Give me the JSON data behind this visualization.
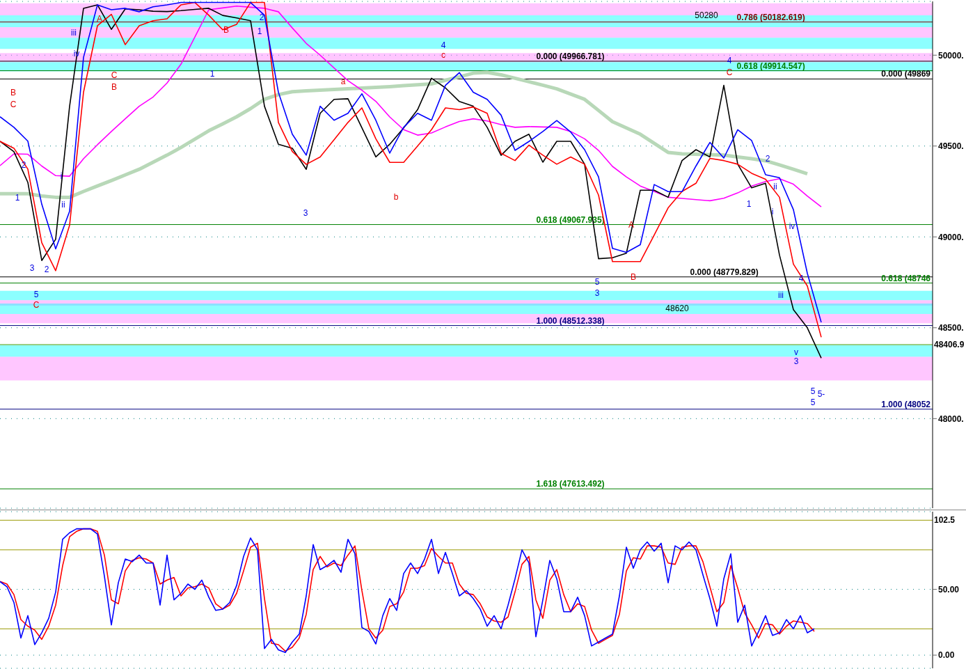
{
  "chart_data": [
    {
      "type": "line",
      "categories": [
        null,
        null,
        null,
        null,
        null,
        null,
        null,
        null,
        null,
        null,
        null,
        null,
        null,
        null,
        null,
        null,
        null,
        null,
        null,
        null,
        null,
        null,
        null,
        null,
        null,
        null,
        null,
        null,
        null,
        null,
        null,
        null,
        null,
        null,
        null,
        null,
        null,
        null,
        null,
        null,
        null,
        null,
        null,
        null,
        null,
        null,
        null,
        null,
        null,
        null,
        null,
        null,
        null,
        null,
        null,
        null,
        null,
        null,
        null,
        null,
        null,
        null,
        null,
        null,
        null,
        null,
        null,
        null
      ],
      "ylim": [
        47507,
        50296
      ],
      "yticks": [
        {
          "value": 48000,
          "label": "48000."
        },
        {
          "value": 48500,
          "label": "48500."
        },
        {
          "value": 49000,
          "label": "49000."
        },
        {
          "value": 49500,
          "label": "49500."
        },
        {
          "value": 50000,
          "label": "50000."
        }
      ],
      "tick_labels": "y",
      "grid": "y",
      "series": [
        {
          "color": "#b8d8b8",
          "values": [
            49238,
            49238,
            49238,
            49225,
            49218,
            49218,
            49250,
            49280,
            49310,
            49341,
            49372,
            49411,
            49450,
            49492,
            49538,
            49584,
            49622,
            49661,
            49706,
            49757,
            49783,
            49799,
            49804,
            49808,
            49811,
            49815,
            49819,
            49823,
            49827,
            49832,
            49837,
            49842,
            49862,
            49881,
            49901,
            49905,
            49892,
            49873,
            49854,
            49835,
            49815,
            49786,
            49757,
            49696,
            49634,
            49600,
            49565,
            49515,
            49465,
            49457,
            49455,
            49452,
            49450,
            49440,
            49430,
            49419,
            49396,
            49372,
            49347,
            null,
            null,
            null,
            null,
            null,
            null,
            null,
            null,
            null
          ]
        },
        {
          "color": "#ff00ff",
          "values": [
            49392,
            49457,
            49455,
            49390,
            49337,
            49334,
            49430,
            49507,
            49580,
            49650,
            49719,
            49770,
            49847,
            49950,
            50100,
            50250,
            50260,
            50270,
            50264,
            50258,
            50239,
            50150,
            50065,
            50000,
            49930,
            49860,
            49807,
            49746,
            49660,
            49590,
            49560,
            49572,
            49605,
            49635,
            49650,
            49638,
            49618,
            49603,
            49607,
            49605,
            49603,
            49580,
            49540,
            49476,
            49388,
            49330,
            49280,
            49250,
            49218,
            49212,
            49205,
            49199,
            49213,
            49242,
            49280,
            49305,
            49320,
            49290,
            49225,
            49165,
            null,
            null,
            null,
            null,
            null,
            null,
            null,
            null
          ]
        },
        {
          "color": "#000000",
          "values": [
            49526,
            49469,
            49300,
            48870,
            48987,
            49719,
            50258,
            50277,
            50142,
            50255,
            50250,
            50242,
            50240,
            50245,
            50252,
            50258,
            50219,
            50205,
            50190,
            49719,
            49510,
            49488,
            49372,
            49680,
            49757,
            49760,
            49600,
            49440,
            49510,
            49600,
            49700,
            49873,
            49820,
            49745,
            49719,
            49603,
            49449,
            49526,
            49565,
            49411,
            49526,
            49526,
            49400,
            48880,
            48885,
            48910,
            49257,
            49257,
            49218,
            49420,
            49480,
            49440,
            49834,
            49400,
            49270,
            49295,
            48900,
            48600,
            48500,
            48333,
            null,
            null,
            null,
            null,
            null,
            null,
            null,
            null
          ]
        },
        {
          "color": "#ff0000",
          "values": [
            49526,
            49488,
            49373,
            48968,
            48814,
            49064,
            49796,
            50162,
            50225,
            50058,
            50162,
            50190,
            50200,
            50277,
            50290,
            50220,
            50140,
            50170,
            50290,
            50290,
            49630,
            49470,
            49399,
            49440,
            49535,
            49630,
            49710,
            49540,
            49410,
            49410,
            49500,
            49590,
            49710,
            49700,
            49715,
            49680,
            49460,
            49420,
            49505,
            49450,
            49400,
            49440,
            49400,
            49230,
            48864,
            48864,
            48864,
            49010,
            49160,
            49250,
            49295,
            49432,
            49420,
            49400,
            49350,
            49317,
            49218,
            48850,
            48730,
            48448,
            null,
            null,
            null,
            null,
            null,
            null,
            null,
            null
          ]
        },
        {
          "color": "#0000ff",
          "values": [
            49661,
            49603,
            49527,
            49180,
            48934,
            49141,
            49988,
            50277,
            50250,
            50258,
            50239,
            50266,
            50277,
            50290,
            50290,
            50290,
            50290,
            50290,
            50290,
            50220,
            49796,
            49565,
            49450,
            49719,
            49642,
            49680,
            49788,
            49642,
            49461,
            49603,
            49680,
            49642,
            49834,
            49904,
            49796,
            49757,
            49670,
            49476,
            49525,
            49580,
            49640,
            49577,
            49480,
            49330,
            48937,
            48915,
            48957,
            49288,
            49249,
            49249,
            49390,
            49520,
            49434,
            49590,
            49530,
            49342,
            49326,
            49150,
            48800,
            48530,
            null,
            null,
            null,
            null,
            null,
            null,
            null,
            null
          ]
        }
      ],
      "annotations": [
        "B",
        "C",
        "1",
        "2",
        "3",
        "2",
        "5",
        "C",
        "i",
        "ii",
        "iii",
        "iv",
        "A",
        "C",
        "B",
        "1",
        "B",
        "2",
        "1",
        "3",
        "a",
        "b",
        "4",
        "c",
        "5",
        "3",
        "A",
        "B",
        "48620",
        "50280",
        "4",
        "C",
        "1",
        "2",
        "ii",
        "i",
        "iii",
        "iv",
        "v",
        "3",
        "4",
        "5",
        "5",
        "5-"
      ],
      "bands": [
        {
          "axis": "y",
          "from": 48340,
          "to": 48410,
          "color": "#00ffff"
        },
        {
          "axis": "y",
          "from": 48210,
          "to": 48340,
          "color": "#ff80ff"
        },
        {
          "axis": "y",
          "from": 48652,
          "to": 48703,
          "color": "#00ffff"
        },
        {
          "axis": "y",
          "from": 48622,
          "to": 48652,
          "color": "#ff80ff"
        },
        {
          "axis": "y",
          "from": 48576,
          "to": 48633,
          "color": "#00ffff"
        },
        {
          "axis": "y",
          "from": 48525,
          "to": 48576,
          "color": "#ff80ff"
        },
        {
          "axis": "y",
          "from": 49962,
          "to": 50012,
          "color": "#ff80ff"
        },
        {
          "axis": "y",
          "from": 49911,
          "to": 49962,
          "color": "#00ffff"
        },
        {
          "axis": "y",
          "from": 50219,
          "to": 50285,
          "color": "#ff80ff"
        },
        {
          "axis": "y",
          "from": 50154,
          "to": 50219,
          "color": "#00ffff"
        },
        {
          "axis": "y",
          "from": 50096,
          "to": 50154,
          "color": "#ff80ff"
        },
        {
          "axis": "y",
          "from": 50035,
          "to": 50096,
          "color": "#00ffff"
        }
      ],
      "ref_lines": [
        {
          "axis": "y",
          "value": 50182.619,
          "label": "0.786 (50182.619)",
          "color": "#800000"
        },
        {
          "axis": "y",
          "value": 49966.781,
          "label": "0.000 (49966.781)",
          "color": "#000000"
        },
        {
          "axis": "y",
          "value": 49914.547,
          "label": "0.618 (49914.547)",
          "color": "#008000"
        },
        {
          "axis": "y",
          "value": 49869,
          "label": "0.000 (49869",
          "color": "#000000"
        },
        {
          "axis": "y",
          "value": 49067.935,
          "label": "0.618 (49067.935)",
          "color": "#008000"
        },
        {
          "axis": "y",
          "value": 48779.829,
          "label": "0.000 (48779.829)",
          "color": "#000000"
        },
        {
          "axis": "y",
          "value": 48746,
          "label": "0.618 (48746",
          "color": "#008000"
        },
        {
          "axis": "y",
          "value": 48512.338,
          "label": "1.000 (48512.338)",
          "color": "#000080"
        },
        {
          "axis": "y",
          "value": 48052,
          "label": "1.000 (48052",
          "color": "#000080"
        },
        {
          "axis": "y",
          "value": 47613.492,
          "label": "1.618 (47613.492)",
          "color": "#008000"
        },
        {
          "axis": "y",
          "value": 48406.9,
          "label": "48406.9",
          "color": "#999900"
        }
      ]
    },
    {
      "type": "line",
      "categories": [
        null,
        null,
        null,
        null,
        null,
        null,
        null,
        null,
        null,
        null,
        null,
        null,
        null,
        null,
        null,
        null,
        null,
        null,
        null,
        null,
        null,
        null,
        null,
        null,
        null,
        null,
        null,
        null,
        null,
        null,
        null,
        null,
        null,
        null,
        null,
        null,
        null,
        null,
        null,
        null,
        null,
        null,
        null,
        null,
        null,
        null,
        null,
        null,
        null,
        null,
        null,
        null,
        null,
        null,
        null,
        null,
        null,
        null,
        null,
        null,
        null,
        null,
        null,
        null,
        null,
        null,
        null,
        null,
        null,
        null,
        null,
        null,
        null,
        null,
        null,
        null,
        null,
        null,
        null,
        null,
        null,
        null,
        null,
        null,
        null,
        null,
        null,
        null,
        null,
        null,
        null,
        null,
        null,
        null,
        null,
        null,
        null,
        null,
        null,
        null,
        null,
        null,
        null,
        null,
        null,
        null,
        null,
        null,
        null,
        null,
        null,
        null,
        null,
        null,
        null,
        null,
        null,
        null,
        null,
        null,
        null,
        null,
        null,
        null,
        null,
        null,
        null,
        null,
        null,
        null,
        null,
        null,
        null,
        null,
        null
      ],
      "ylim": [
        -10,
        109
      ],
      "yticks": [
        {
          "value": 0,
          "label": "0.00"
        },
        {
          "value": 50,
          "label": "50.00"
        }
      ],
      "tick_labels": "y",
      "grid": "y",
      "ref_lines": [
        {
          "axis": "y",
          "value": 20,
          "color": "#999900"
        },
        {
          "axis": "y",
          "value": 80,
          "color": "#999900"
        },
        {
          "axis": "y",
          "value": 102.5,
          "label": "102.5",
          "color": "#999900"
        }
      ],
      "series": [
        {
          "color": "#ff0000",
          "values": [
            56,
            54,
            46,
            27,
            22,
            19,
            12,
            22,
            38,
            68,
            90,
            94,
            96,
            96,
            94,
            76,
            42,
            39,
            64,
            72,
            74,
            73,
            70,
            54,
            57,
            59,
            45,
            51,
            52,
            54,
            51,
            39,
            35,
            38,
            47,
            64,
            82,
            85,
            43,
            9,
            8,
            3,
            6,
            13,
            31,
            65,
            75,
            67,
            70,
            68,
            76,
            83,
            49,
            20,
            13,
            19,
            37,
            39,
            48,
            66,
            66,
            68,
            81,
            75,
            70,
            70,
            54,
            47,
            46,
            39,
            29,
            26,
            25,
            29,
            48,
            69,
            75,
            42,
            28,
            57,
            65,
            46,
            33,
            39,
            37,
            19,
            9,
            12,
            15,
            31,
            64,
            74,
            73,
            83,
            83,
            82,
            70,
            69,
            82,
            83,
            83,
            71,
            52,
            33,
            40,
            68,
            51,
            32,
            23,
            13,
            24,
            23,
            16,
            22,
            26,
            25,
            24,
            18,
            null,
            null,
            null,
            null,
            null,
            null,
            null,
            null,
            null,
            null,
            null,
            null,
            null,
            null,
            null,
            null,
            null
          ]
        },
        {
          "color": "#0000ff",
          "values": [
            55.9,
            52,
            40,
            13,
            30,
            8,
            17,
            28,
            48,
            88,
            93,
            96,
            96,
            96,
            92,
            60,
            23,
            55,
            73,
            71,
            76,
            70,
            70,
            38,
            76,
            42,
            47,
            54,
            50,
            57,
            44,
            34,
            35,
            40,
            53,
            75,
            89,
            80,
            5,
            12,
            4,
            2,
            10,
            16,
            45,
            84,
            65,
            68,
            72,
            63,
            88,
            77,
            21,
            18,
            8.5,
            30,
            43,
            34,
            62,
            70,
            62,
            73,
            88,
            62,
            78,
            62,
            45,
            49,
            43,
            35,
            22,
            30,
            20,
            38,
            58,
            80,
            70,
            14,
            42,
            72,
            58,
            33,
            33,
            44,
            30,
            7,
            10,
            13,
            16,
            45,
            82,
            66,
            80,
            86,
            79,
            85,
            55,
            83,
            80,
            86,
            80,
            61,
            43,
            22,
            58,
            77,
            25,
            38,
            7,
            18,
            30,
            15,
            17,
            27,
            20,
            30,
            17,
            20,
            null,
            null,
            null,
            null,
            null,
            null,
            null,
            null,
            null,
            null,
            null,
            null,
            null,
            null,
            null,
            null,
            null
          ]
        }
      ]
    }
  ]
}
